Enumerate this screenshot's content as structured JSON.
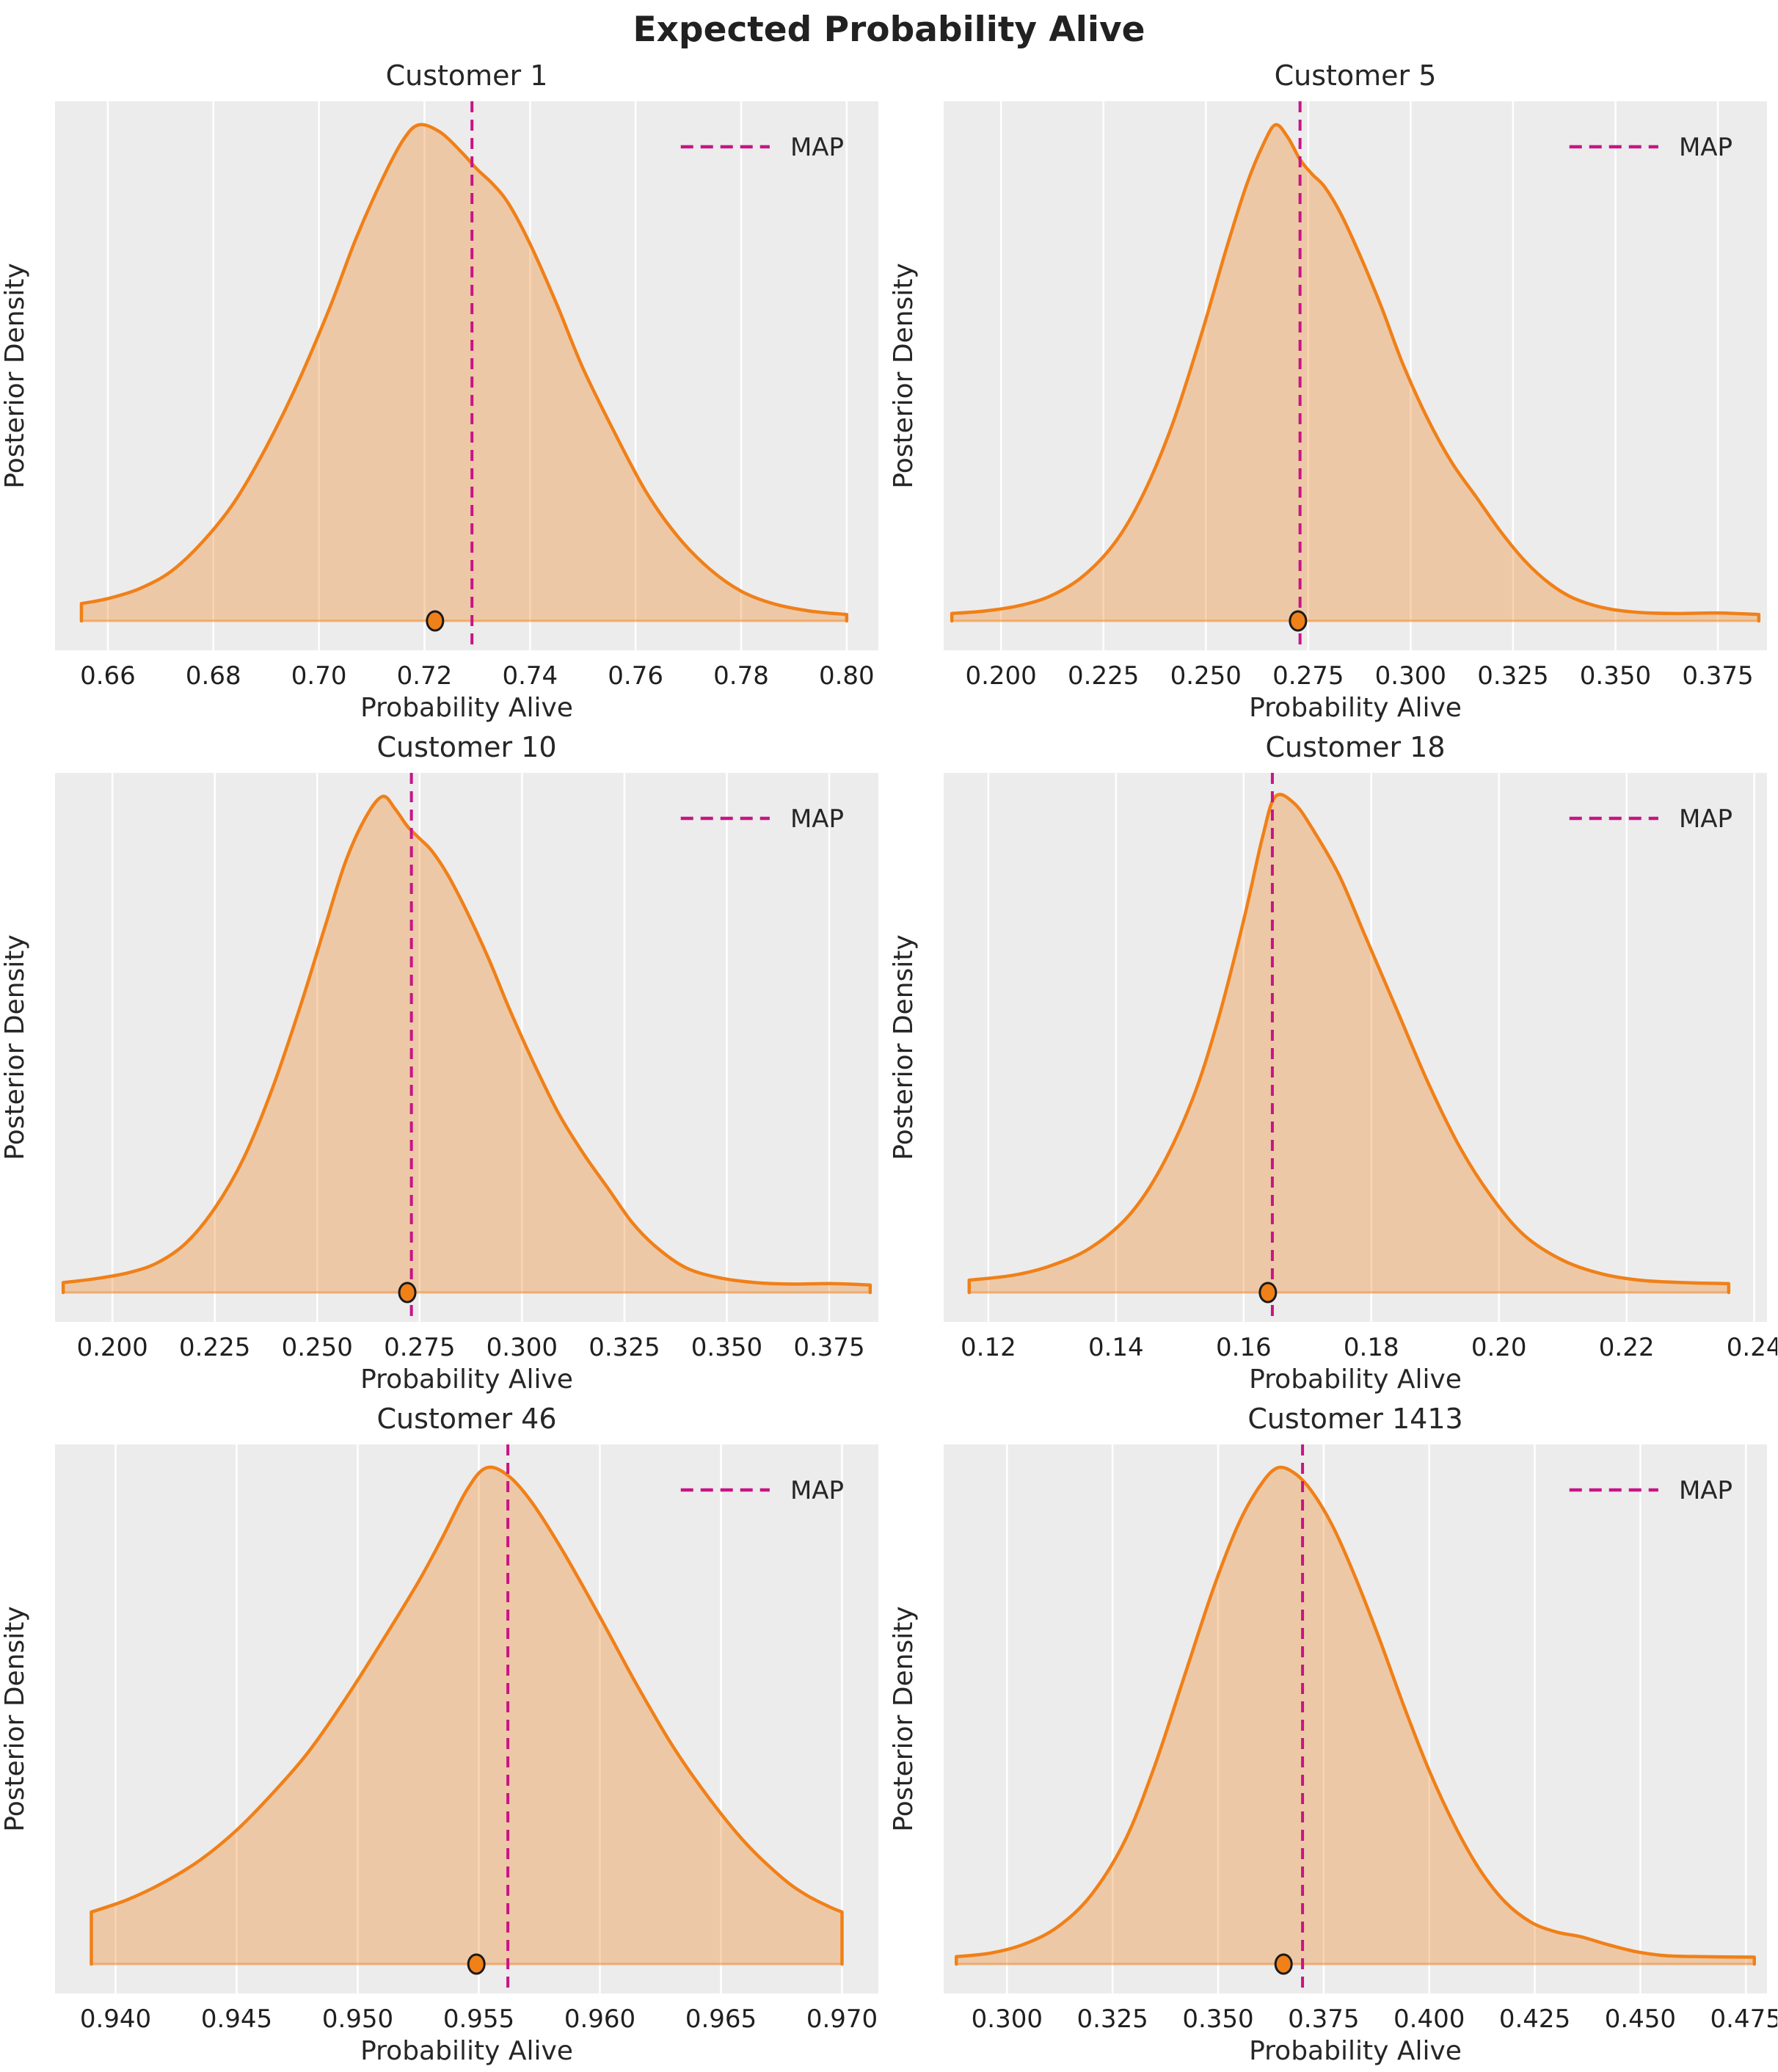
{
  "title": "Expected Probability Alive",
  "colors": {
    "curve": "#f08018",
    "fill_opacity": 0.33,
    "map_line": "#c71585",
    "plot_bg": "#ececec",
    "grid_line": "#ffffff",
    "text": "#262626",
    "tick_text": "#1f1f1f",
    "dot_fill": "#f08018",
    "dot_edge": "#1a1a1a"
  },
  "chart_data": [
    {
      "type": "area",
      "customer": "Customer 1",
      "xlabel": "Probability Alive",
      "ylabel": "Posterior Density",
      "legend_label": "MAP",
      "xlim": [
        0.65,
        0.806
      ],
      "xticks": [
        0.66,
        0.68,
        0.7,
        0.72,
        0.74,
        0.76,
        0.78,
        0.8
      ],
      "xtick_labels": [
        "0.66",
        "0.68",
        "0.70",
        "0.72",
        "0.74",
        "0.76",
        "0.78",
        "0.80"
      ],
      "map_value": 0.729,
      "point_value": 0.722,
      "density_points": [
        [
          0.655,
          0.035
        ],
        [
          0.66,
          0.045
        ],
        [
          0.666,
          0.065
        ],
        [
          0.672,
          0.1
        ],
        [
          0.678,
          0.16
        ],
        [
          0.684,
          0.24
        ],
        [
          0.69,
          0.35
        ],
        [
          0.696,
          0.48
        ],
        [
          0.702,
          0.63
        ],
        [
          0.707,
          0.77
        ],
        [
          0.712,
          0.89
        ],
        [
          0.716,
          0.97
        ],
        [
          0.719,
          1.0
        ],
        [
          0.723,
          0.985
        ],
        [
          0.727,
          0.945
        ],
        [
          0.73,
          0.91
        ],
        [
          0.733,
          0.88
        ],
        [
          0.736,
          0.84
        ],
        [
          0.74,
          0.76
        ],
        [
          0.745,
          0.64
        ],
        [
          0.75,
          0.51
        ],
        [
          0.756,
          0.38
        ],
        [
          0.762,
          0.26
        ],
        [
          0.768,
          0.17
        ],
        [
          0.774,
          0.105
        ],
        [
          0.78,
          0.06
        ],
        [
          0.786,
          0.035
        ],
        [
          0.793,
          0.02
        ],
        [
          0.8,
          0.013
        ]
      ]
    },
    {
      "type": "area",
      "customer": "Customer 5",
      "xlabel": "Probability Alive",
      "ylabel": "Posterior Density",
      "legend_label": "MAP",
      "xlim": [
        0.186,
        0.387
      ],
      "xticks": [
        0.2,
        0.225,
        0.25,
        0.275,
        0.3,
        0.325,
        0.35,
        0.375
      ],
      "xtick_labels": [
        "0.200",
        "0.225",
        "0.250",
        "0.275",
        "0.300",
        "0.325",
        "0.350",
        "0.375"
      ],
      "map_value": 0.273,
      "point_value": 0.2725,
      "density_points": [
        [
          0.188,
          0.015
        ],
        [
          0.196,
          0.02
        ],
        [
          0.204,
          0.03
        ],
        [
          0.212,
          0.05
        ],
        [
          0.22,
          0.09
        ],
        [
          0.228,
          0.16
        ],
        [
          0.235,
          0.26
        ],
        [
          0.242,
          0.4
        ],
        [
          0.249,
          0.58
        ],
        [
          0.255,
          0.75
        ],
        [
          0.26,
          0.88
        ],
        [
          0.264,
          0.96
        ],
        [
          0.267,
          1.0
        ],
        [
          0.27,
          0.975
        ],
        [
          0.273,
          0.93
        ],
        [
          0.276,
          0.9
        ],
        [
          0.279,
          0.875
        ],
        [
          0.283,
          0.82
        ],
        [
          0.288,
          0.73
        ],
        [
          0.293,
          0.63
        ],
        [
          0.298,
          0.52
        ],
        [
          0.304,
          0.41
        ],
        [
          0.31,
          0.32
        ],
        [
          0.316,
          0.25
        ],
        [
          0.322,
          0.18
        ],
        [
          0.328,
          0.12
        ],
        [
          0.334,
          0.075
        ],
        [
          0.34,
          0.045
        ],
        [
          0.348,
          0.025
        ],
        [
          0.356,
          0.017
        ],
        [
          0.365,
          0.015
        ],
        [
          0.375,
          0.016
        ],
        [
          0.385,
          0.013
        ]
      ]
    },
    {
      "type": "area",
      "customer": "Customer 10",
      "xlabel": "Probability Alive",
      "ylabel": "Posterior Density",
      "legend_label": "MAP",
      "xlim": [
        0.186,
        0.387
      ],
      "xticks": [
        0.2,
        0.225,
        0.25,
        0.275,
        0.3,
        0.325,
        0.35,
        0.375
      ],
      "xtick_labels": [
        "0.200",
        "0.225",
        "0.250",
        "0.275",
        "0.300",
        "0.325",
        "0.350",
        "0.375"
      ],
      "map_value": 0.273,
      "point_value": 0.272,
      "density_points": [
        [
          0.188,
          0.02
        ],
        [
          0.196,
          0.028
        ],
        [
          0.204,
          0.04
        ],
        [
          0.211,
          0.06
        ],
        [
          0.218,
          0.1
        ],
        [
          0.225,
          0.17
        ],
        [
          0.232,
          0.27
        ],
        [
          0.239,
          0.41
        ],
        [
          0.246,
          0.58
        ],
        [
          0.252,
          0.74
        ],
        [
          0.257,
          0.87
        ],
        [
          0.262,
          0.96
        ],
        [
          0.266,
          1.0
        ],
        [
          0.269,
          0.975
        ],
        [
          0.272,
          0.94
        ],
        [
          0.275,
          0.915
        ],
        [
          0.278,
          0.89
        ],
        [
          0.282,
          0.84
        ],
        [
          0.287,
          0.76
        ],
        [
          0.292,
          0.67
        ],
        [
          0.297,
          0.57
        ],
        [
          0.303,
          0.46
        ],
        [
          0.309,
          0.36
        ],
        [
          0.315,
          0.28
        ],
        [
          0.321,
          0.21
        ],
        [
          0.327,
          0.14
        ],
        [
          0.333,
          0.09
        ],
        [
          0.34,
          0.05
        ],
        [
          0.348,
          0.03
        ],
        [
          0.357,
          0.02
        ],
        [
          0.366,
          0.017
        ],
        [
          0.376,
          0.018
        ],
        [
          0.385,
          0.015
        ]
      ]
    },
    {
      "type": "area",
      "customer": "Customer 18",
      "xlabel": "Probability Alive",
      "ylabel": "Posterior Density",
      "legend_label": "MAP",
      "xlim": [
        0.113,
        0.242
      ],
      "xticks": [
        0.12,
        0.14,
        0.16,
        0.18,
        0.2,
        0.22,
        0.24
      ],
      "xtick_labels": [
        "0.12",
        "0.14",
        "0.16",
        "0.18",
        "0.20",
        "0.22",
        "0.24"
      ],
      "map_value": 0.1645,
      "point_value": 0.1638,
      "density_points": [
        [
          0.117,
          0.025
        ],
        [
          0.124,
          0.035
        ],
        [
          0.13,
          0.055
        ],
        [
          0.136,
          0.09
        ],
        [
          0.142,
          0.155
        ],
        [
          0.147,
          0.25
        ],
        [
          0.152,
          0.39
        ],
        [
          0.156,
          0.55
        ],
        [
          0.16,
          0.75
        ],
        [
          0.163,
          0.92
        ],
        [
          0.165,
          1.0
        ],
        [
          0.168,
          0.985
        ],
        [
          0.171,
          0.93
        ],
        [
          0.175,
          0.84
        ],
        [
          0.179,
          0.72
        ],
        [
          0.184,
          0.57
        ],
        [
          0.189,
          0.42
        ],
        [
          0.194,
          0.29
        ],
        [
          0.199,
          0.19
        ],
        [
          0.204,
          0.115
        ],
        [
          0.21,
          0.065
        ],
        [
          0.216,
          0.038
        ],
        [
          0.222,
          0.025
        ],
        [
          0.229,
          0.02
        ],
        [
          0.236,
          0.018
        ]
      ]
    },
    {
      "type": "area",
      "customer": "Customer 46",
      "xlabel": "Probability Alive",
      "ylabel": "Posterior Density",
      "legend_label": "MAP",
      "xlim": [
        0.9375,
        0.9715
      ],
      "xticks": [
        0.94,
        0.945,
        0.95,
        0.955,
        0.96,
        0.965,
        0.97
      ],
      "xtick_labels": [
        "0.940",
        "0.945",
        "0.950",
        "0.955",
        "0.960",
        "0.965",
        "0.970"
      ],
      "map_value": 0.9562,
      "point_value": 0.9549,
      "density_points": [
        [
          0.939,
          0.105
        ],
        [
          0.9405,
          0.13
        ],
        [
          0.942,
          0.165
        ],
        [
          0.9435,
          0.21
        ],
        [
          0.945,
          0.27
        ],
        [
          0.9465,
          0.345
        ],
        [
          0.948,
          0.43
        ],
        [
          0.9495,
          0.535
        ],
        [
          0.951,
          0.65
        ],
        [
          0.9525,
          0.77
        ],
        [
          0.9535,
          0.86
        ],
        [
          0.9545,
          0.955
        ],
        [
          0.9553,
          1.0
        ],
        [
          0.9562,
          0.985
        ],
        [
          0.9572,
          0.93
        ],
        [
          0.9585,
          0.83
        ],
        [
          0.96,
          0.7
        ],
        [
          0.9615,
          0.565
        ],
        [
          0.963,
          0.44
        ],
        [
          0.9645,
          0.335
        ],
        [
          0.966,
          0.245
        ],
        [
          0.9675,
          0.175
        ],
        [
          0.9685,
          0.14
        ],
        [
          0.9695,
          0.115
        ],
        [
          0.97,
          0.105
        ]
      ]
    },
    {
      "type": "area",
      "customer": "Customer 1413",
      "xlabel": "Probability Alive",
      "ylabel": "Posterior Density",
      "legend_label": "MAP",
      "xlim": [
        0.285,
        0.48
      ],
      "xticks": [
        0.3,
        0.325,
        0.35,
        0.375,
        0.4,
        0.425,
        0.45,
        0.475
      ],
      "xtick_labels": [
        "0.300",
        "0.325",
        "0.350",
        "0.375",
        "0.400",
        "0.425",
        "0.450",
        "0.475"
      ],
      "map_value": 0.37,
      "point_value": 0.3655,
      "density_points": [
        [
          0.288,
          0.015
        ],
        [
          0.296,
          0.022
        ],
        [
          0.304,
          0.04
        ],
        [
          0.312,
          0.075
        ],
        [
          0.32,
          0.14
        ],
        [
          0.328,
          0.25
        ],
        [
          0.335,
          0.4
        ],
        [
          0.342,
          0.58
        ],
        [
          0.349,
          0.76
        ],
        [
          0.355,
          0.89
        ],
        [
          0.36,
          0.965
        ],
        [
          0.364,
          1.0
        ],
        [
          0.368,
          0.99
        ],
        [
          0.372,
          0.955
        ],
        [
          0.377,
          0.885
        ],
        [
          0.382,
          0.79
        ],
        [
          0.388,
          0.66
        ],
        [
          0.394,
          0.52
        ],
        [
          0.4,
          0.39
        ],
        [
          0.406,
          0.28
        ],
        [
          0.412,
          0.19
        ],
        [
          0.418,
          0.125
        ],
        [
          0.424,
          0.085
        ],
        [
          0.43,
          0.065
        ],
        [
          0.436,
          0.055
        ],
        [
          0.442,
          0.04
        ],
        [
          0.449,
          0.025
        ],
        [
          0.456,
          0.017
        ],
        [
          0.465,
          0.015
        ],
        [
          0.477,
          0.014
        ]
      ]
    }
  ]
}
